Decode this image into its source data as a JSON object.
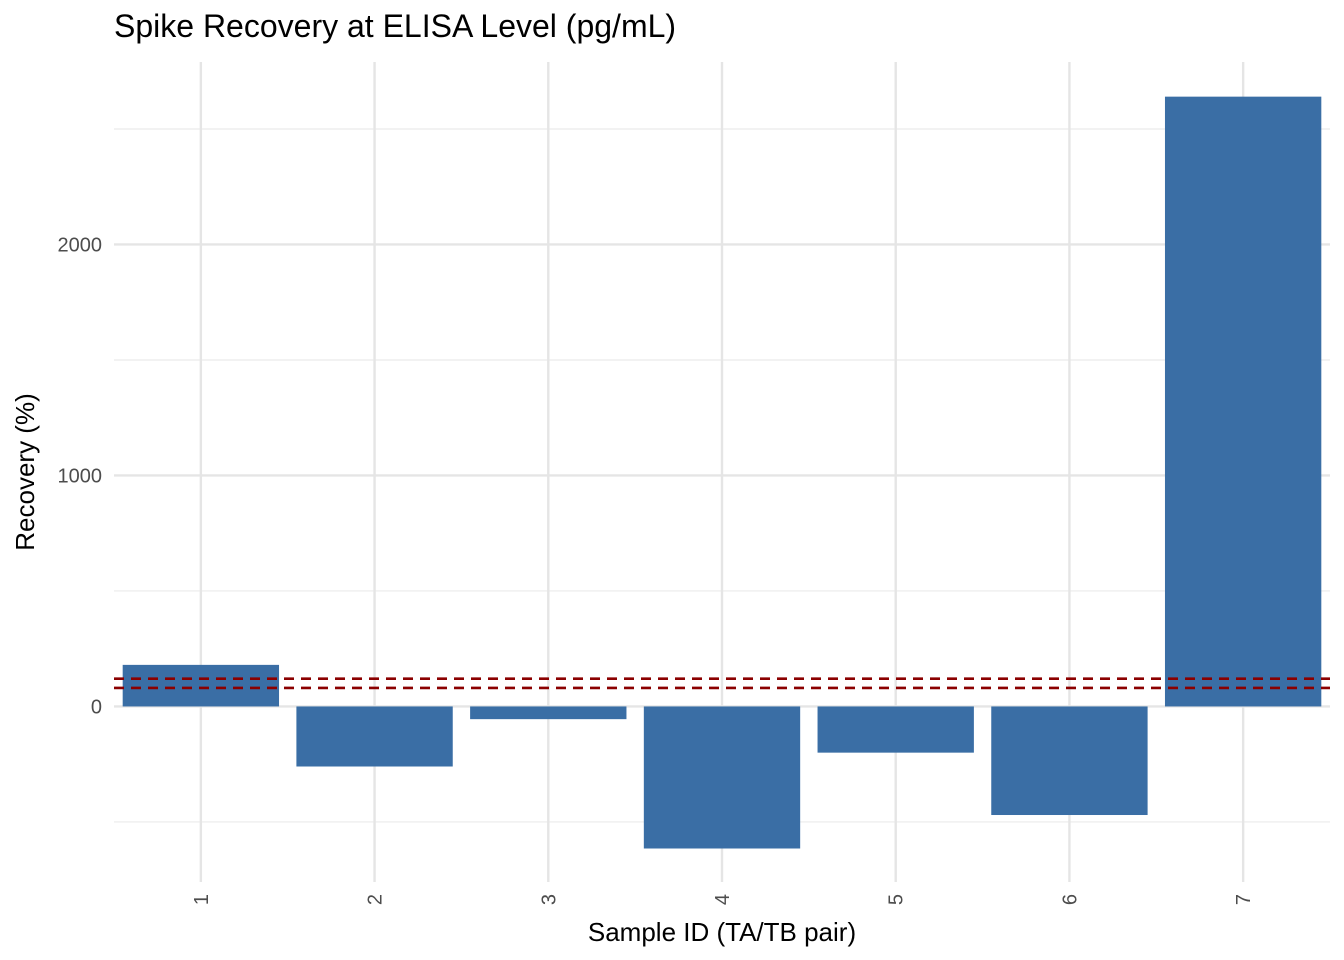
{
  "chart_data": {
    "type": "bar",
    "title": "Spike Recovery at ELISA Level (pg/mL)",
    "xlabel": "Sample ID (TA/TB pair)",
    "ylabel": "Recovery (%)",
    "categories": [
      "1",
      "2",
      "3",
      "4",
      "5",
      "6",
      "7"
    ],
    "values": [
      180,
      -260,
      -55,
      -615,
      -200,
      -470,
      2640
    ],
    "ylim": [
      -760,
      2790
    ],
    "yticks": [
      0,
      1000,
      2000
    ],
    "reference_lines": [
      80,
      120
    ],
    "bar_color": "#3A6EA5",
    "reference_line_color": "#8B0000",
    "grid": true
  }
}
